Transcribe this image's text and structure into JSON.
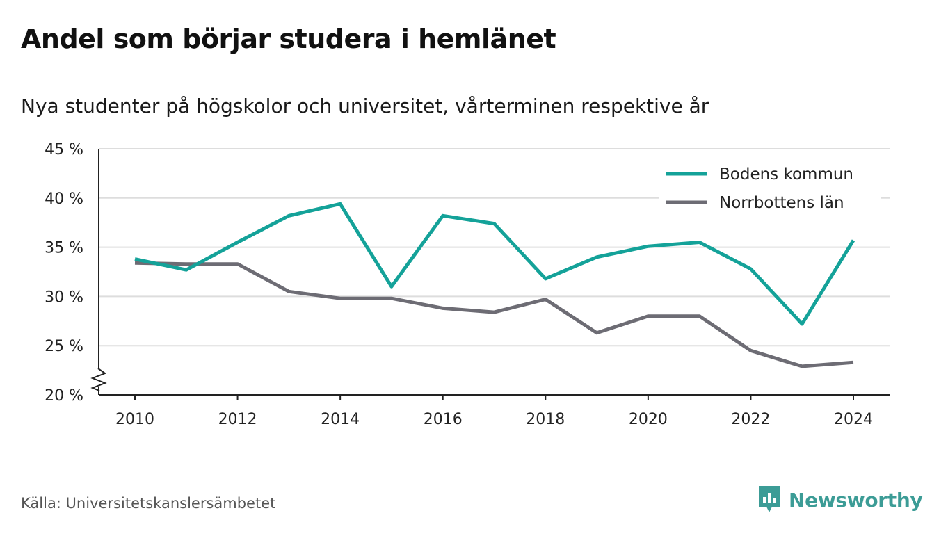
{
  "header": {
    "title": "Andel som börjar studera i hemlänet",
    "subtitle": "Nya studenter på högskolor och universitet, vårterminen respektive år"
  },
  "footer": {
    "source": "Källa: Universitetskanslersämbetet",
    "brand": "Newsworthy"
  },
  "colors": {
    "bodens": "#14a299",
    "norrbotten": "#6d6c74",
    "grid": "#dddddd",
    "brand": "#3c9c96"
  },
  "chart_data": {
    "type": "line",
    "x": [
      2010,
      2011,
      2012,
      2013,
      2014,
      2015,
      2016,
      2017,
      2018,
      2019,
      2020,
      2021,
      2022,
      2023,
      2024
    ],
    "x_ticks": [
      "2010",
      "2012",
      "2014",
      "2016",
      "2018",
      "2020",
      "2022",
      "2024"
    ],
    "y_ticks": [
      "20 %",
      "25 %",
      "30 %",
      "35 %",
      "40 %",
      "45 %"
    ],
    "ylim": [
      20,
      45
    ],
    "y_axis_break": true,
    "grid": true,
    "legend_position": "top-right",
    "series": [
      {
        "name": "Bodens kommun",
        "color": "#14a299",
        "values": [
          33.8,
          32.7,
          35.5,
          38.2,
          39.4,
          31.0,
          38.2,
          37.4,
          31.8,
          34.0,
          35.1,
          35.5,
          32.8,
          27.2,
          35.7
        ]
      },
      {
        "name": "Norrbottens län",
        "color": "#6d6c74",
        "values": [
          33.4,
          33.3,
          33.3,
          30.5,
          29.8,
          29.8,
          28.8,
          28.4,
          29.7,
          26.3,
          28.0,
          28.0,
          24.5,
          22.9,
          23.3
        ]
      }
    ]
  }
}
